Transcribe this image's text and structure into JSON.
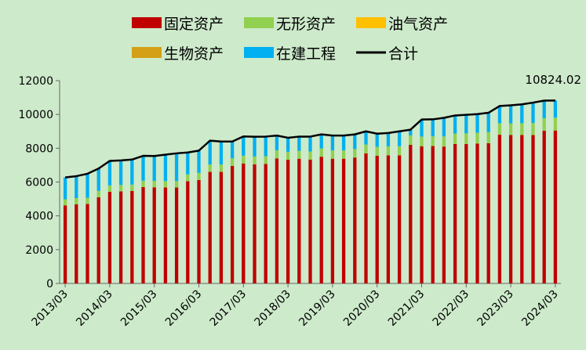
{
  "chart_data": {
    "type": "bar",
    "stacked": true,
    "title": "",
    "xlabel": "",
    "ylabel": "",
    "ylim": [
      0,
      12000
    ],
    "yticks": [
      0,
      2000,
      4000,
      6000,
      8000,
      10000,
      12000
    ],
    "grid": false,
    "legend_position": "top",
    "categories": [
      "2013/03",
      "2013/06",
      "2013/09",
      "2013/12",
      "2014/03",
      "2014/06",
      "2014/09",
      "2014/12",
      "2015/03",
      "2015/06",
      "2015/09",
      "2015/12",
      "2016/03",
      "2016/06",
      "2016/09",
      "2016/12",
      "2017/03",
      "2017/06",
      "2017/09",
      "2017/12",
      "2018/03",
      "2018/06",
      "2018/09",
      "2018/12",
      "2019/03",
      "2019/06",
      "2019/09",
      "2019/12",
      "2020/03",
      "2020/06",
      "2020/09",
      "2020/12",
      "2021/03",
      "2021/06",
      "2021/09",
      "2021/12",
      "2022/03",
      "2022/06",
      "2022/09",
      "2022/12",
      "2023/03",
      "2023/06",
      "2023/09",
      "2023/12",
      "2024/03"
    ],
    "x_tick_labels": [
      "2013/03",
      "2014/03",
      "2015/03",
      "2016/03",
      "2017/03",
      "2018/03",
      "2019/03",
      "2020/03",
      "2021/03",
      "2022/03",
      "2023/03",
      "2024/03"
    ],
    "series": [
      {
        "name": "固定资产",
        "color": "#c00000",
        "values": [
          4620,
          4680,
          4700,
          5100,
          5420,
          5450,
          5470,
          5700,
          5690,
          5680,
          5680,
          6050,
          6120,
          6600,
          6600,
          6950,
          7100,
          7050,
          7070,
          7400,
          7320,
          7380,
          7330,
          7500,
          7380,
          7380,
          7450,
          7700,
          7560,
          7580,
          7580,
          8200,
          8120,
          8130,
          8100,
          8250,
          8250,
          8280,
          8300,
          8800,
          8780,
          8780,
          8780,
          9040,
          9050
        ]
      },
      {
        "name": "无形资产",
        "color": "#92d050",
        "values": [
          360,
          370,
          370,
          380,
          380,
          380,
          380,
          380,
          380,
          380,
          380,
          400,
          420,
          440,
          440,
          450,
          460,
          460,
          460,
          480,
          470,
          470,
          480,
          490,
          490,
          490,
          500,
          520,
          520,
          530,
          540,
          560,
          570,
          580,
          600,
          620,
          630,
          640,
          650,
          680,
          690,
          700,
          710,
          740,
          760
        ]
      },
      {
        "name": "油气资产",
        "color": "#ffc000",
        "values": [
          0,
          0,
          0,
          0,
          0,
          0,
          0,
          0,
          0,
          0,
          0,
          0,
          0,
          0,
          0,
          0,
          0,
          0,
          0,
          0,
          0,
          0,
          0,
          0,
          0,
          0,
          0,
          0,
          0,
          0,
          0,
          0,
          0,
          0,
          0,
          0,
          0,
          0,
          0,
          0,
          0,
          0,
          0,
          0,
          0
        ]
      },
      {
        "name": "生物资产",
        "color": "#d4a017",
        "values": [
          0,
          0,
          0,
          0,
          0,
          0,
          0,
          0,
          0,
          0,
          0,
          0,
          0,
          0,
          0,
          0,
          0,
          0,
          0,
          0,
          0,
          0,
          0,
          0,
          0,
          0,
          0,
          0,
          0,
          0,
          0,
          0,
          0,
          0,
          0,
          0,
          0,
          0,
          0,
          0,
          0,
          0,
          0,
          0,
          0
        ]
      },
      {
        "name": "在建工程",
        "color": "#00b0f0",
        "values": [
          1290,
          1300,
          1420,
          1320,
          1450,
          1450,
          1480,
          1470,
          1470,
          1560,
          1640,
          1300,
          1320,
          1410,
          1360,
          1000,
          1140,
          1170,
          1160,
          870,
          830,
          840,
          880,
          830,
          880,
          880,
          870,
          780,
          780,
          790,
          880,
          340,
          1010,
          1000,
          1100,
          1070,
          1100,
          1100,
          1150,
          1020,
          1070,
          1120,
          1210,
          1040,
          1014
        ]
      },
      {
        "name": "合计",
        "color": "#000000",
        "type": "line",
        "values": [
          6270,
          6350,
          6490,
          6800,
          7250,
          7280,
          7330,
          7550,
          7540,
          7620,
          7700,
          7750,
          7860,
          8450,
          8400,
          8400,
          8700,
          8680,
          8690,
          8750,
          8620,
          8690,
          8690,
          8820,
          8750,
          8750,
          8820,
          9000,
          8860,
          8900,
          9000,
          9100,
          9700,
          9710,
          9800,
          9940,
          9980,
          10020,
          10100,
          10500,
          10540,
          10600,
          10700,
          10820,
          10824
        ]
      }
    ],
    "annotations": [
      {
        "text": "10824.02"
      }
    ]
  }
}
